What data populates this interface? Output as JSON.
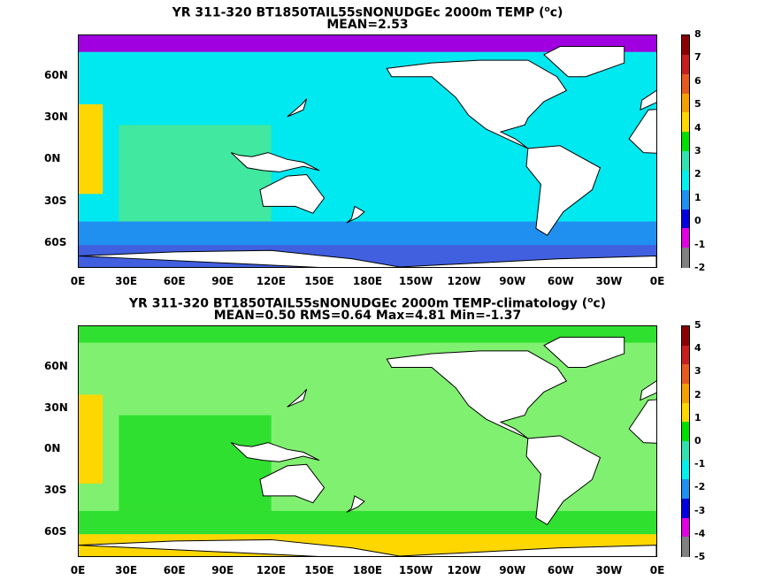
{
  "panels": [
    {
      "title_prefix": "YR 311-320 BT1850TAIL55sNONUDGEc 2000m TEMP (",
      "title_unit": "o",
      "title_suffix": "c)",
      "stats": "MEAN=2.53",
      "colorbar_ticks": [
        "8",
        "7",
        "6",
        "5",
        "4",
        "3",
        "2",
        "1",
        "0",
        "-1",
        "-2"
      ],
      "colors": [
        "#8b0000",
        "#c81e1e",
        "#e65a1e",
        "#f5a000",
        "#ffd700",
        "#00e000",
        "#32e0b0",
        "#00f0f0",
        "#2090f0",
        "#0000e0",
        "#e000e0",
        "#808080"
      ],
      "ocean_fill": {
        "pacific": "#00e8f0",
        "indian": "#40e8a0",
        "atlantic_n": "#ffd700",
        "atlantic_s": "#50e0a0",
        "southern": "#2090f0",
        "far_south": "#4060e0",
        "arctic": "#a000e0"
      }
    },
    {
      "title_prefix": "YR 311-320 BT1850TAIL55sNONUDGEc 2000m TEMP-climatology (",
      "title_unit": "o",
      "title_suffix": "c)",
      "stats": "MEAN=0.50   RMS=0.64   Max=4.81   Min=-1.37",
      "colorbar_ticks": [
        "5",
        "4",
        "3",
        "2",
        "1",
        "0",
        "-1",
        "-2",
        "-3",
        "-4",
        "-5"
      ],
      "colors": [
        "#8b0000",
        "#c81e1e",
        "#e65a1e",
        "#f5a000",
        "#ffd700",
        "#00e000",
        "#32e0b0",
        "#00f0f0",
        "#2090f0",
        "#0000e0",
        "#e000e0",
        "#808080"
      ],
      "ocean_fill": {
        "pacific": "#80f070",
        "indian": "#30e030",
        "atlantic_n": "#ffd700",
        "atlantic_s": "#30e030",
        "southern": "#30e030",
        "far_south": "#ffd700",
        "arctic": "#30e030"
      }
    }
  ],
  "x_ticks": [
    "0E",
    "30E",
    "60E",
    "90E",
    "120E",
    "150E",
    "180E",
    "150W",
    "120W",
    "90W",
    "60W",
    "30W",
    "0E"
  ],
  "y_ticks": [
    "60N",
    "30N",
    "0N",
    "30S",
    "60S"
  ]
}
